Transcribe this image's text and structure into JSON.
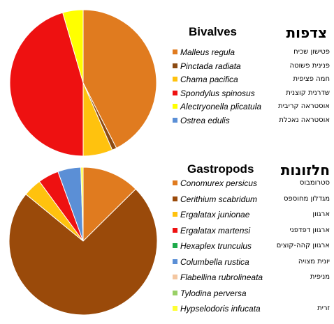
{
  "chart_data": [
    {
      "type": "pie",
      "title": "Bivalves",
      "title_hebrew": "צדפות",
      "categories": [
        "Malleus regula",
        "Pinctada radiata",
        "Chama pacifica",
        "Spondylus spinosus",
        "Alectryonella plicatula",
        "Ostrea edulis"
      ],
      "categories_hebrew": [
        "פטישון שכיח",
        "פנינית פשוטה",
        "חמה פציפית",
        "שדרנית קוצנית",
        "אוסטראה קריבית",
        "אוסטראה נאכלת"
      ],
      "values": [
        42.5,
        1.0,
        6.5,
        45.5,
        4.5,
        0
      ],
      "colors": [
        "#E07B1F",
        "#8B4A12",
        "#FFC20E",
        "#EE1111",
        "#FFFF00",
        "#5B8FD6"
      ],
      "stroke": "#ffffff"
    },
    {
      "type": "pie",
      "title": "Gastropods",
      "title_hebrew": "חלזונות",
      "categories": [
        "Conomurex persicus",
        "Cerithium scabridum",
        "Ergalatax junionae",
        "Ergalatax martensi",
        "Hexaplex trunculus",
        "Columbella rustica",
        "Flabellina rubrolineata",
        "Tylodina perversa",
        "Hypselodoris infucata"
      ],
      "categories_hebrew": [
        "סטרומבוס",
        "מגדלון מחוספס",
        "ארגוון",
        "ארגוון דפדפני",
        "ארגוון קהה-קוצים",
        "יונית מצויה",
        "מניפית",
        "",
        "זרית"
      ],
      "values": [
        12.5,
        73.0,
        4.0,
        4.5,
        0,
        5.0,
        0,
        0,
        0.5
      ],
      "colors": [
        "#E07B1F",
        "#9A4A0A",
        "#FFC20E",
        "#EE1111",
        "#1DAA4A",
        "#5B8FD6",
        "#F4C7A1",
        "#99D066",
        "#FFFF33"
      ],
      "stroke": "#ffffff"
    }
  ]
}
